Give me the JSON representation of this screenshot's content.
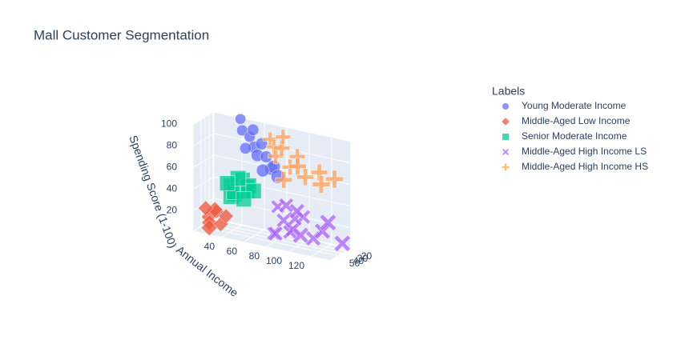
{
  "chart_data": {
    "type": "scatter3d",
    "title": "Mall Customer Segmentation",
    "legend_title": "Labels",
    "xlabel": null,
    "ylabel": "Annual Income",
    "zlabel": "Spending Score (1-100)",
    "xlim": [
      18,
      70
    ],
    "ylim": [
      15,
      137
    ],
    "zlim": [
      1,
      99
    ],
    "xticks": [
      20,
      30,
      40,
      50
    ],
    "yticks": [
      40,
      60,
      80,
      100,
      120
    ],
    "zticks": [
      20,
      40,
      60,
      80,
      100
    ],
    "grid": true,
    "series": [
      {
        "name": "Young Moderate Income",
        "color": "#636efa",
        "symbol": "circle",
        "x": [
          19,
          23,
          21,
          27,
          25,
          30,
          22,
          29,
          31,
          26,
          33,
          24,
          35
        ],
        "y": [
          39,
          42,
          48,
          54,
          60,
          58,
          63,
          70,
          73,
          46,
          64,
          52,
          78
        ],
        "z": [
          99,
          90,
          85,
          78,
          82,
          72,
          70,
          62,
          65,
          75,
          60,
          93,
          58
        ]
      },
      {
        "name": "Middle-Aged Low Income",
        "color": "#EF553B",
        "symbol": "diamond",
        "x": [
          45,
          49,
          40,
          52,
          43,
          47,
          38,
          55
        ],
        "y": [
          20,
          22,
          25,
          28,
          30,
          18,
          33,
          24
        ],
        "z": [
          10,
          6,
          15,
          20,
          5,
          18,
          12,
          3
        ]
      },
      {
        "name": "Senior Moderate Income",
        "color": "#00cc96",
        "symbol": "square",
        "x": [
          60,
          65,
          58,
          68,
          62,
          70,
          55,
          63,
          67,
          59,
          66,
          61
        ],
        "y": [
          45,
          50,
          55,
          48,
          60,
          52,
          58,
          62,
          54,
          65,
          44,
          57
        ],
        "z": [
          48,
          42,
          55,
          40,
          50,
          46,
          44,
          52,
          58,
          47,
          51,
          38
        ]
      },
      {
        "name": "Middle-Aged High Income LS",
        "color": "#ab63fa",
        "symbol": "x",
        "x": [
          35,
          40,
          38,
          45,
          33,
          42,
          37,
          48,
          36,
          41,
          44,
          39,
          34,
          46,
          43
        ],
        "y": [
          78,
          85,
          90,
          95,
          100,
          88,
          75,
          103,
          110,
          120,
          126,
          137,
          93,
          80,
          98
        ],
        "z": [
          30,
          20,
          10,
          15,
          25,
          35,
          5,
          12,
          8,
          18,
          28,
          10,
          22,
          8,
          32
        ]
      },
      {
        "name": "Middle-Aged High Income HS",
        "color": "#FFA15A",
        "symbol": "cross",
        "x": [
          32,
          36,
          40,
          45,
          38,
          34,
          47,
          42,
          35,
          44,
          39,
          33,
          48
        ],
        "y": [
          70,
          75,
          78,
          85,
          90,
          95,
          100,
          105,
          115,
          120,
          130,
          82,
          88
        ],
        "z": [
          90,
          85,
          78,
          88,
          70,
          80,
          75,
          65,
          70,
          62,
          68,
          95,
          60
        ]
      }
    ]
  }
}
